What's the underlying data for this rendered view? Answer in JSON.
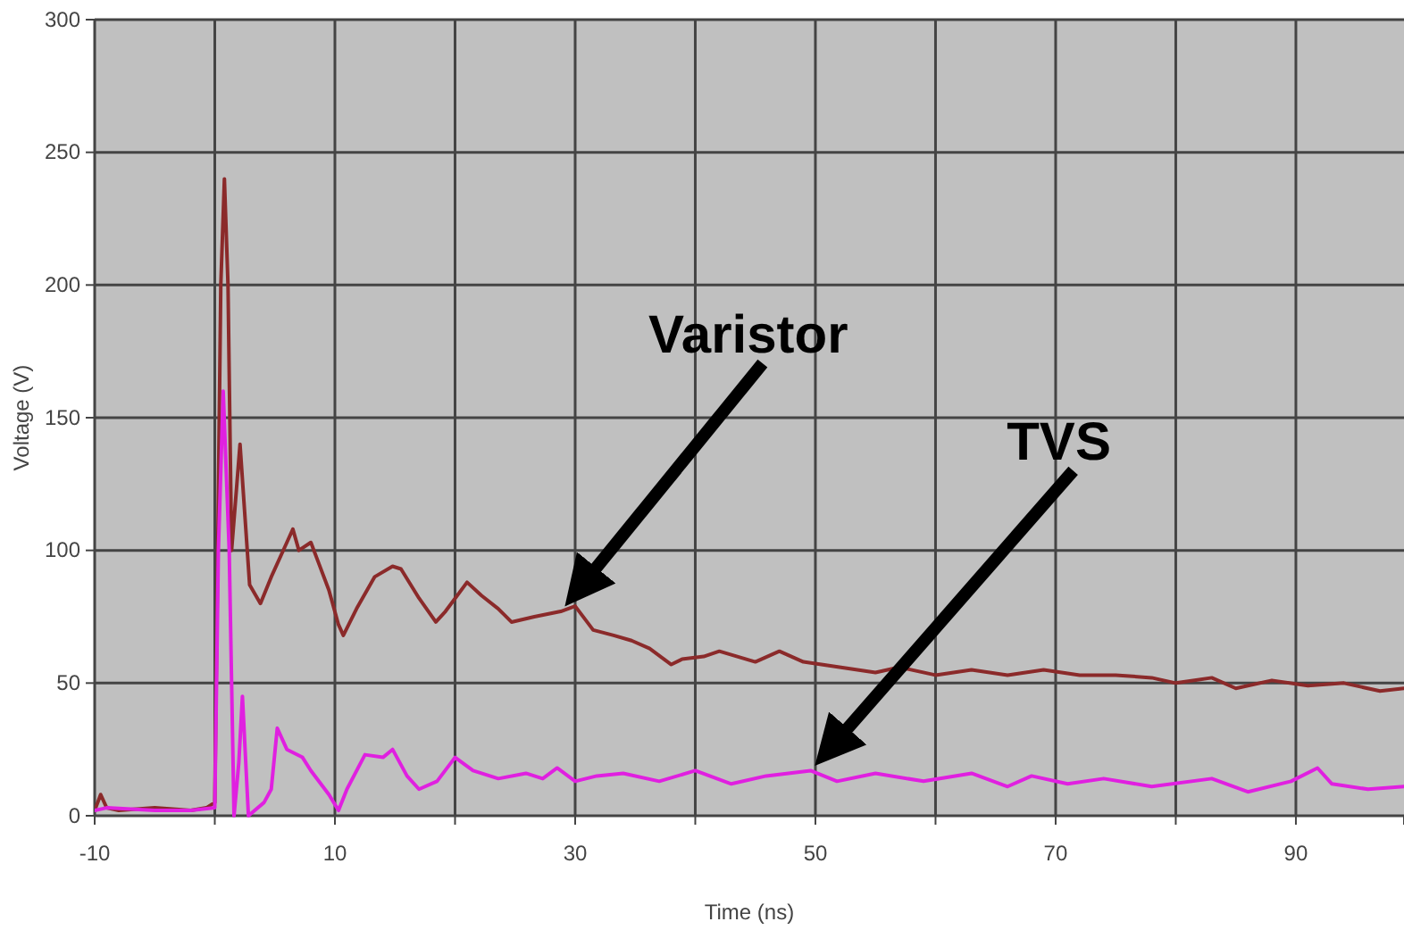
{
  "chart_data": {
    "type": "line",
    "xlabel": "Time (ns)",
    "ylabel": "Voltage (V)",
    "xlim": [
      -10,
      99
    ],
    "ylim": [
      0,
      300
    ],
    "xticks": [
      -10,
      {
        "value": 0,
        "label": null
      },
      10,
      {
        "value": 20,
        "label": null
      },
      30,
      {
        "value": 40,
        "label": null
      },
      50,
      {
        "value": 60,
        "label": null
      },
      70,
      {
        "value": 80,
        "label": null
      },
      90
    ],
    "yticks": [
      0,
      50,
      100,
      150,
      200,
      250,
      300
    ],
    "grid": true,
    "series": [
      {
        "color": "#8b2a2a",
        "x": [
          -10,
          -9.5,
          -9,
          -8,
          -5,
          -2,
          -0.7,
          0,
          0.5,
          0.8,
          1.1,
          1.4,
          2.1,
          2.9,
          3.8,
          4.7,
          6,
          6.5,
          7,
          8,
          8.5,
          9.5,
          10.3,
          10.7,
          11.8,
          13.3,
          14.8,
          15.5,
          17,
          18.4,
          19.2,
          21,
          22.2,
          23.6,
          24.7,
          26.6,
          28.8,
          30,
          31.5,
          33.2,
          34.7,
          36.2,
          38,
          38.9,
          40.7,
          42,
          45,
          47,
          49,
          52,
          55,
          57,
          60,
          63,
          66,
          69,
          72,
          75,
          78,
          80,
          83,
          85,
          88,
          91,
          94,
          97,
          99
        ],
        "values": [
          2,
          8,
          3,
          2,
          3,
          2,
          3,
          5,
          200,
          240,
          200,
          100,
          140,
          87,
          80,
          90,
          103,
          108,
          100,
          103,
          97,
          85,
          72,
          68,
          78,
          90,
          94,
          93,
          82,
          73,
          77,
          88,
          83,
          78,
          73,
          75,
          77,
          79,
          70,
          68,
          66,
          63,
          57,
          59,
          60,
          62,
          58,
          62,
          58,
          56,
          54,
          56,
          53,
          55,
          53,
          55,
          53,
          53,
          52,
          50,
          52,
          48,
          51,
          49,
          50,
          47,
          48
        ]
      },
      {
        "color": "#e020e0",
        "x": [
          -10,
          -9,
          -5,
          -2,
          0,
          0.3,
          0.7,
          1.2,
          1.6,
          2,
          2.3,
          2.8,
          4.1,
          4.7,
          5.2,
          6,
          7.3,
          8,
          9.5,
          10.3,
          11,
          12.5,
          14,
          14.8,
          16,
          17,
          18.5,
          20,
          21.5,
          23.6,
          25.9,
          27.3,
          28.5,
          30,
          31.8,
          34,
          37,
          40,
          43,
          45.9,
          49.6,
          51.8,
          55,
          59,
          63,
          66,
          68,
          71,
          74,
          78,
          83,
          86,
          89.6,
          91.8,
          93,
          96,
          99
        ],
        "values": [
          2,
          3,
          2,
          2,
          3,
          100,
          160,
          100,
          0,
          20,
          45,
          0,
          5,
          10,
          33,
          25,
          22,
          17,
          8,
          2,
          10,
          23,
          22,
          25,
          15,
          10,
          13,
          22,
          17,
          14,
          16,
          14,
          18,
          13,
          15,
          16,
          13,
          17,
          12,
          15,
          17,
          13,
          16,
          13,
          16,
          11,
          15,
          12,
          14,
          11,
          14,
          9,
          13,
          18,
          12,
          10,
          11
        ]
      }
    ],
    "annotations": [
      "Varistor",
      "TVS"
    ]
  }
}
